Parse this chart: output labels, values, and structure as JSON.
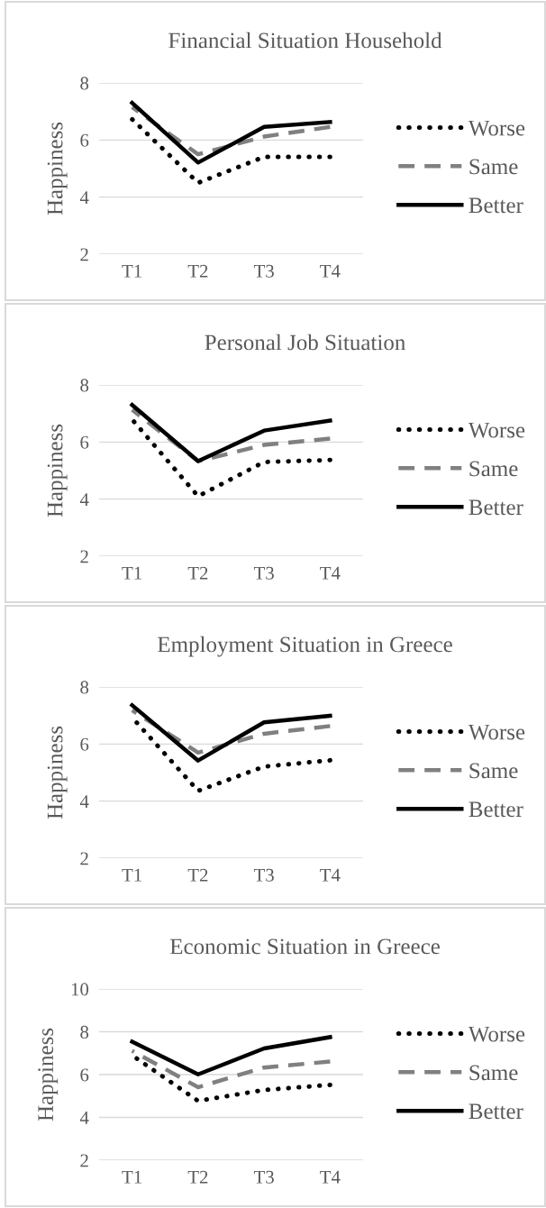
{
  "chart_data": [
    {
      "type": "line",
      "title": "Financial Situation Household",
      "ylabel": "Happiness",
      "categories": [
        "T1",
        "T2",
        "T3",
        "T4"
      ],
      "ylim": [
        2,
        8
      ],
      "yticks": [
        2,
        4,
        6,
        8
      ],
      "grid": "y",
      "legend": "right",
      "marker": "none",
      "series": [
        {
          "name": "Worse",
          "color": "#000000",
          "line_style": "dotted",
          "values": [
            6.73,
            4.5,
            5.41,
            5.41
          ]
        },
        {
          "name": "Same",
          "color": "#808080",
          "line_style": "dashed",
          "values": [
            7.15,
            5.5,
            6.12,
            6.46
          ]
        },
        {
          "name": "Better",
          "color": "#000000",
          "line_style": "solid",
          "values": [
            7.3,
            5.21,
            6.46,
            6.63
          ]
        }
      ]
    },
    {
      "type": "line",
      "title": "Personal Job Situation",
      "ylabel": "Happiness",
      "categories": [
        "T1",
        "T2",
        "T3",
        "T4"
      ],
      "ylim": [
        2,
        8
      ],
      "yticks": [
        2,
        4,
        6,
        8
      ],
      "grid": "y",
      "legend": "right",
      "marker": "none",
      "series": [
        {
          "name": "Worse",
          "color": "#000000",
          "line_style": "dotted",
          "values": [
            6.79,
            4.1,
            5.3,
            5.37
          ]
        },
        {
          "name": "Same",
          "color": "#808080",
          "line_style": "dashed",
          "values": [
            7.13,
            5.33,
            5.9,
            6.12
          ]
        },
        {
          "name": "Better",
          "color": "#000000",
          "line_style": "solid",
          "values": [
            7.3,
            5.33,
            6.4,
            6.75
          ]
        }
      ]
    },
    {
      "type": "line",
      "title": "Employment Situation in Greece",
      "ylabel": "Happiness",
      "categories": [
        "T1",
        "T2",
        "T3",
        "T4"
      ],
      "ylim": [
        2,
        8
      ],
      "yticks": [
        2,
        4,
        6,
        8
      ],
      "grid": "y",
      "legend": "right",
      "marker": "none",
      "series": [
        {
          "name": "Worse",
          "color": "#000000",
          "line_style": "dotted",
          "values": [
            6.93,
            4.36,
            5.21,
            5.43
          ]
        },
        {
          "name": "Same",
          "color": "#808080",
          "line_style": "dashed",
          "values": [
            7.18,
            5.7,
            6.36,
            6.63
          ]
        },
        {
          "name": "Better",
          "color": "#000000",
          "line_style": "solid",
          "values": [
            7.36,
            5.42,
            6.76,
            6.99
          ]
        }
      ]
    },
    {
      "type": "line",
      "title": "Economic Situation in Greece",
      "ylabel": "Happiness",
      "categories": [
        "T1",
        "T2",
        "T3",
        "T4"
      ],
      "ylim": [
        2,
        10
      ],
      "yticks": [
        2,
        4,
        6,
        8,
        10
      ],
      "grid": "y",
      "legend": "right",
      "marker": "none",
      "series": [
        {
          "name": "Worse",
          "color": "#000000",
          "line_style": "dotted",
          "values": [
            6.9,
            4.77,
            5.28,
            5.52
          ]
        },
        {
          "name": "Same",
          "color": "#808080",
          "line_style": "dashed",
          "values": [
            7.11,
            5.41,
            6.33,
            6.61
          ]
        },
        {
          "name": "Better",
          "color": "#000000",
          "line_style": "solid",
          "values": [
            7.54,
            6.01,
            7.22,
            7.75
          ]
        }
      ]
    }
  ]
}
